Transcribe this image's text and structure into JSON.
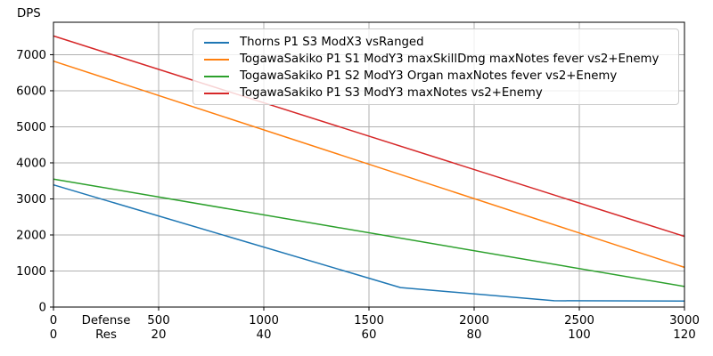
{
  "chart_data": {
    "type": "line",
    "title": "",
    "ylabel": "DPS",
    "xlabel_row1": "Defense",
    "xlabel_row2": "Res",
    "xlim": [
      0,
      3000
    ],
    "ylim": [
      0,
      7900
    ],
    "grid": true,
    "legend_position": "upper center",
    "x_ticks": [
      {
        "defense": "0",
        "res": "0",
        "value": 0
      },
      {
        "defense": "500",
        "res": "20",
        "value": 500
      },
      {
        "defense": "1000",
        "res": "40",
        "value": 1000
      },
      {
        "defense": "1500",
        "res": "60",
        "value": 1500
      },
      {
        "defense": "2000",
        "res": "80",
        "value": 2000
      },
      {
        "defense": "2500",
        "res": "100",
        "value": 2500
      },
      {
        "defense": "3000",
        "res": "120",
        "value": 3000
      }
    ],
    "y_ticks": [
      {
        "label": "0",
        "value": 0
      },
      {
        "label": "1000",
        "value": 1000
      },
      {
        "label": "2000",
        "value": 2000
      },
      {
        "label": "3000",
        "value": 3000
      },
      {
        "label": "4000",
        "value": 4000
      },
      {
        "label": "5000",
        "value": 5000
      },
      {
        "label": "6000",
        "value": 6000
      },
      {
        "label": "7000",
        "value": 7000
      }
    ],
    "series": [
      {
        "name": "Thorns P1 S3 ModX3 vsRanged",
        "color": "#1f77b4",
        "points": [
          [
            0,
            3390
          ],
          [
            1650,
            540
          ],
          [
            2380,
            175
          ],
          [
            3000,
            165
          ]
        ]
      },
      {
        "name": "TogawaSakiko P1 S1 ModY3 maxSkillDmg maxNotes fever vs2+Enemy",
        "color": "#ff7f0e",
        "points": [
          [
            0,
            6820
          ],
          [
            3000,
            1100
          ]
        ]
      },
      {
        "name": "TogawaSakiko P1 S2 ModY3 Organ maxNotes fever vs2+Enemy",
        "color": "#2ca02c",
        "points": [
          [
            0,
            3550
          ],
          [
            3000,
            570
          ]
        ]
      },
      {
        "name": "TogawaSakiko P1 S3 ModY3 maxNotes vs2+Enemy",
        "color": "#d62728",
        "points": [
          [
            0,
            7520
          ],
          [
            3000,
            1960
          ]
        ]
      }
    ],
    "colors": {
      "grid": "#b0b0b0",
      "axis": "#000000",
      "legend_border": "#cccccc",
      "background": "#ffffff"
    }
  }
}
